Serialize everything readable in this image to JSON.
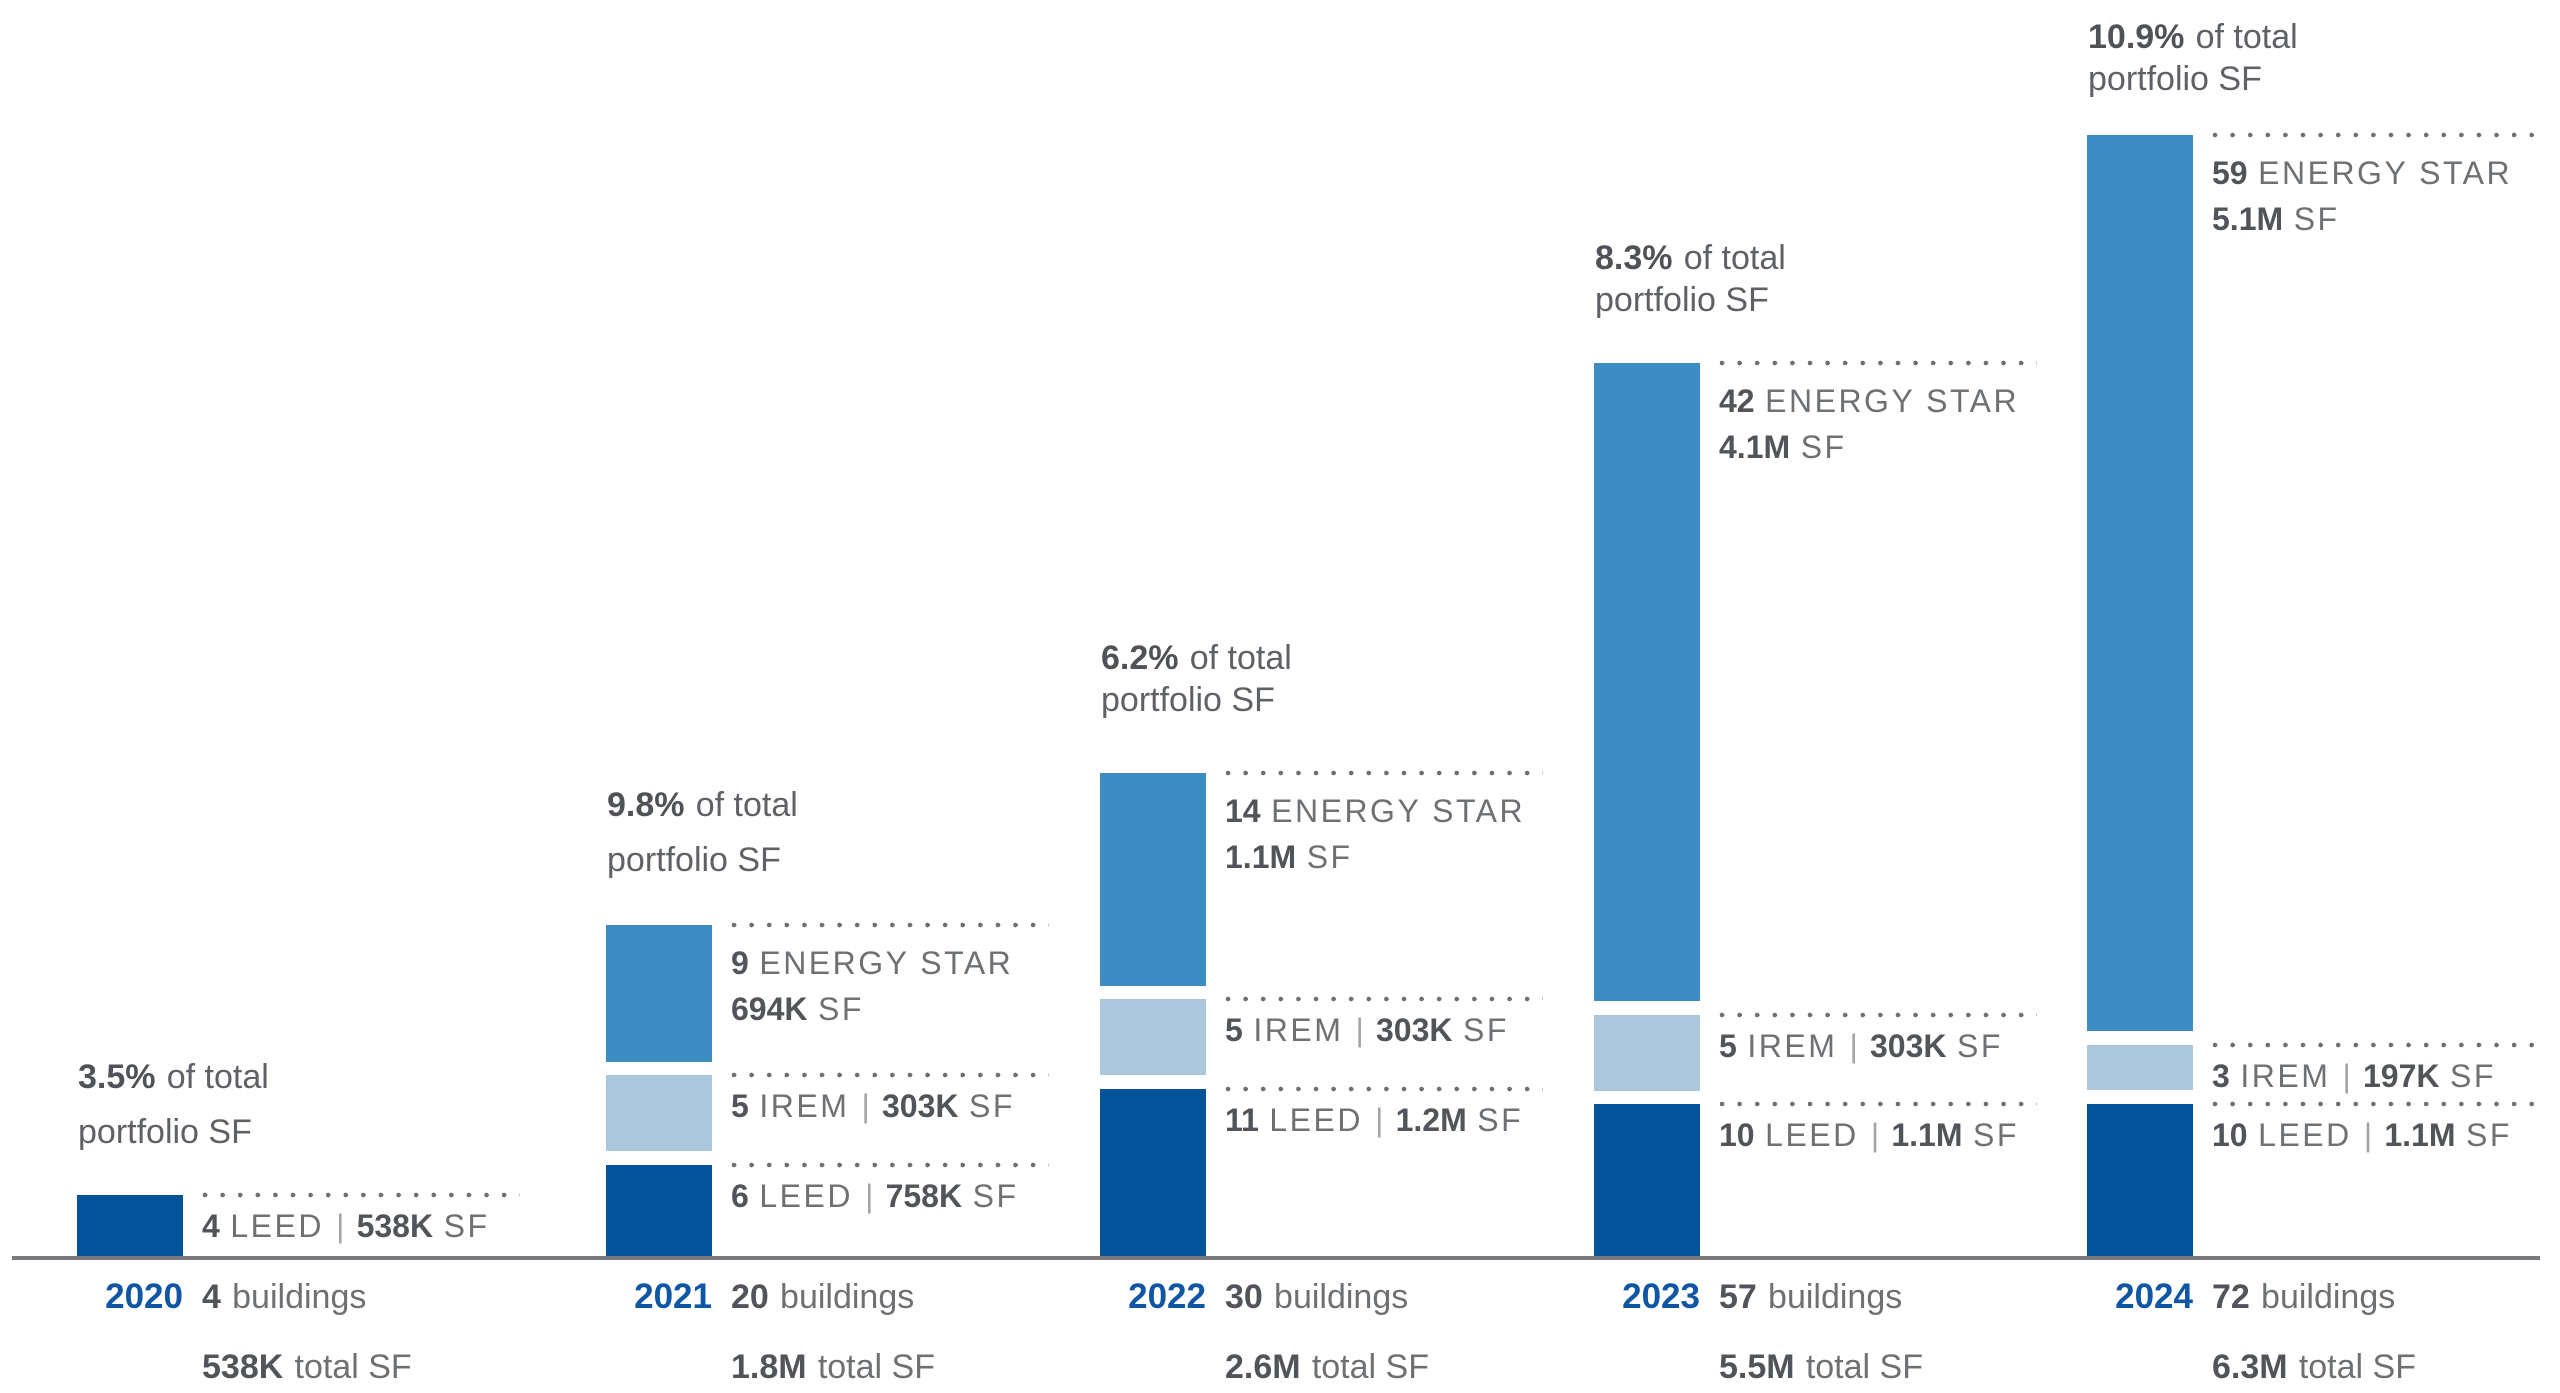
{
  "chart_data": {
    "type": "bar",
    "stacked": true,
    "orientation": "vertical",
    "grid": false,
    "legend": "none",
    "bar_height_encoding": "number of certified buildings",
    "categories": [
      "2020",
      "2021",
      "2022",
      "2023",
      "2024"
    ],
    "series": [
      {
        "name": "ENERGY STAR",
        "color": "#3e8cc4",
        "buildings": [
          0,
          9,
          14,
          42,
          59
        ],
        "sf_label": [
          "",
          "694K",
          "1.1M",
          "4.1M",
          "5.1M"
        ]
      },
      {
        "name": "IREM",
        "color": "#abc7dc",
        "buildings": [
          0,
          5,
          5,
          5,
          3
        ],
        "sf_label": [
          "",
          "303K",
          "303K",
          "303K",
          "197K"
        ]
      },
      {
        "name": "LEED",
        "color": "#05539a",
        "buildings": [
          4,
          6,
          11,
          10,
          10
        ],
        "sf_label": [
          "538K",
          "758K",
          "1.2M",
          "1.1M",
          "1.1M"
        ]
      }
    ],
    "percent_of_total_portfolio_sf": [
      "3.5%",
      "9.8%",
      "6.2%",
      "8.3%",
      "10.9%"
    ],
    "totals": {
      "buildings": [
        4,
        20,
        30,
        57,
        72
      ],
      "sf": [
        "538K",
        "1.8M",
        "2.6M",
        "5.5M",
        "6.3M"
      ]
    },
    "text": {
      "of_total": "of total",
      "portfolio_sf": "portfolio SF",
      "buildings_word": "buildings",
      "total_sf_word": "total SF",
      "sf_word": "SF",
      "separator": "|"
    },
    "colors": {
      "year_label": "#0f56a4",
      "bold_text": "#515458",
      "regular_text": "#6e7174",
      "dotted_leader": "#6d7073",
      "axis_line": "#77797c",
      "background": "#ffffff"
    }
  }
}
